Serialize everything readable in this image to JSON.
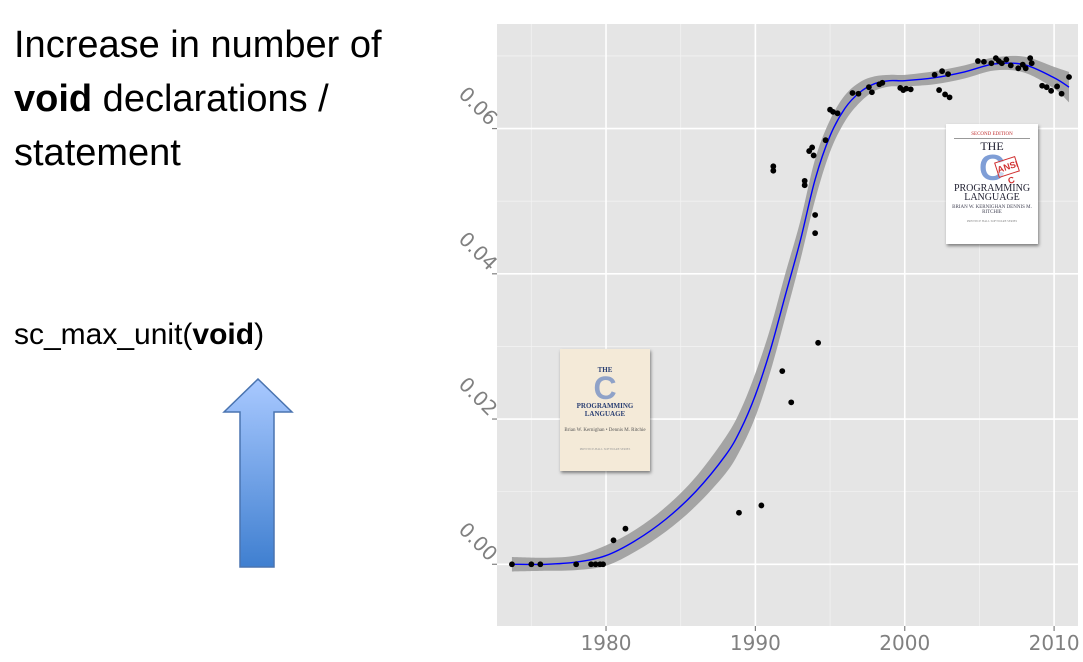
{
  "slide": {
    "title_pre": "Increase in number of",
    "title_bold": "void",
    "title_mid": " declarations /",
    "title_post": "statement",
    "code_pre": "sc_max_unit(",
    "code_bold": "void",
    "code_post": ")"
  },
  "colors": {
    "panel_background": "#e5e5e5",
    "gridline": "#ffffff",
    "points": "#000000",
    "smooth_line": "#0000ff",
    "confidence_band": "#999999",
    "arrow": "#5b8fd6"
  },
  "icons": [
    "up-arrow-icon"
  ],
  "books": {
    "first_edition": {
      "title_top": "THE",
      "title_big": "C",
      "title_bottom": "PROGRAMMING LANGUAGE",
      "authors": "Brian W. Kernighan • Dennis M. Ritchie",
      "footer": "PRENTICE-HALL SOFTWARE SERIES"
    },
    "second_edition": {
      "edition": "SECOND EDITION",
      "title_top": "THE",
      "title_big": "C",
      "stamp": "ANSI C",
      "title_bottom": "PROGRAMMING LANGUAGE",
      "authors": "BRIAN W. KERNIGHAN DENNIS M. RITCHIE",
      "footer": "PRENTICE HALL SOFTWARE SERIES"
    }
  },
  "chart_data": {
    "type": "scatter",
    "xlabel": "",
    "ylabel": "",
    "xlim": [
      1972.7,
      2011.6
    ],
    "ylim": [
      -0.0085,
      0.0744
    ],
    "xticks": [
      1980,
      1990,
      2000,
      2010
    ],
    "xtick_labels": [
      "1980",
      "1990",
      "2000",
      "2010"
    ],
    "yticks": [
      0.0,
      0.02,
      0.04,
      0.06
    ],
    "ytick_labels": [
      "0.00",
      "0.02",
      "0.04",
      "0.06"
    ],
    "ytick_rotation_deg": 45,
    "grid": true,
    "legend": "none",
    "points": [
      [
        1973.7,
        0.0
      ],
      [
        1975.0,
        0.0
      ],
      [
        1975.6,
        0.0
      ],
      [
        1978.0,
        0.0
      ],
      [
        1979.0,
        0.0
      ],
      [
        1979.3,
        0.0
      ],
      [
        1979.6,
        0.0
      ],
      [
        1979.8,
        0.0
      ],
      [
        1980.5,
        0.0033
      ],
      [
        1981.3,
        0.0049
      ],
      [
        1988.9,
        0.0071
      ],
      [
        1990.4,
        0.0081
      ],
      [
        1991.2,
        0.0548
      ],
      [
        1991.2,
        0.0542
      ],
      [
        1991.8,
        0.0266
      ],
      [
        1992.4,
        0.0223
      ],
      [
        1993.3,
        0.0528
      ],
      [
        1993.3,
        0.0522
      ],
      [
        1993.6,
        0.0569
      ],
      [
        1993.8,
        0.0574
      ],
      [
        1993.9,
        0.0563
      ],
      [
        1994.0,
        0.0481
      ],
      [
        1994.0,
        0.0456
      ],
      [
        1994.2,
        0.0305
      ],
      [
        1994.7,
        0.0584
      ],
      [
        1995.0,
        0.0626
      ],
      [
        1995.2,
        0.0623
      ],
      [
        1995.5,
        0.0621
      ],
      [
        1996.5,
        0.0649
      ],
      [
        1996.9,
        0.0648
      ],
      [
        1997.6,
        0.0657
      ],
      [
        1997.8,
        0.065
      ],
      [
        1998.3,
        0.0661
      ],
      [
        1998.5,
        0.0663
      ],
      [
        1999.7,
        0.0656
      ],
      [
        1999.9,
        0.0653
      ],
      [
        2000.1,
        0.0655
      ],
      [
        2000.4,
        0.0654
      ],
      [
        2002.0,
        0.0674
      ],
      [
        2002.3,
        0.0653
      ],
      [
        2002.5,
        0.0679
      ],
      [
        2002.7,
        0.0647
      ],
      [
        2002.9,
        0.0675
      ],
      [
        2003.0,
        0.0643
      ],
      [
        2004.9,
        0.0693
      ],
      [
        2005.3,
        0.0692
      ],
      [
        2005.8,
        0.069
      ],
      [
        2006.1,
        0.0697
      ],
      [
        2006.3,
        0.0693
      ],
      [
        2006.5,
        0.069
      ],
      [
        2006.8,
        0.0695
      ],
      [
        2007.1,
        0.0687
      ],
      [
        2007.6,
        0.0683
      ],
      [
        2007.9,
        0.0688
      ],
      [
        2008.1,
        0.0683
      ],
      [
        2008.4,
        0.0697
      ],
      [
        2008.5,
        0.069
      ],
      [
        2009.2,
        0.0659
      ],
      [
        2009.5,
        0.0657
      ],
      [
        2009.8,
        0.0652
      ],
      [
        2010.2,
        0.0658
      ],
      [
        2010.5,
        0.0648
      ],
      [
        2011.0,
        0.0671
      ]
    ],
    "smooth": {
      "x": [
        1973.7,
        1976,
        1978,
        1980,
        1982,
        1984,
        1986,
        1988,
        1989,
        1990,
        1991,
        1992,
        1993,
        1994,
        1995,
        1996,
        1997,
        1998,
        1999,
        2000,
        2002,
        2004,
        2006,
        2008,
        2010,
        2011.0
      ],
      "y": [
        0.0,
        0.0,
        0.0003,
        0.0012,
        0.0033,
        0.0062,
        0.01,
        0.015,
        0.0185,
        0.0233,
        0.0295,
        0.037,
        0.0445,
        0.053,
        0.059,
        0.0628,
        0.065,
        0.0662,
        0.0666,
        0.0666,
        0.067,
        0.0678,
        0.0689,
        0.0688,
        0.067,
        0.0657
      ],
      "lo": [
        -0.001,
        -0.0009,
        -0.0008,
        -0.0002,
        0.0018,
        0.0045,
        0.008,
        0.0125,
        0.0158,
        0.0203,
        0.0265,
        0.034,
        0.0418,
        0.0502,
        0.0568,
        0.061,
        0.0636,
        0.0652,
        0.0658,
        0.0658,
        0.0661,
        0.0669,
        0.068,
        0.0677,
        0.0655,
        0.0636
      ],
      "hi": [
        0.001,
        0.0009,
        0.0012,
        0.0026,
        0.0048,
        0.0079,
        0.012,
        0.0175,
        0.0212,
        0.0263,
        0.0325,
        0.04,
        0.0472,
        0.0558,
        0.0612,
        0.0646,
        0.0664,
        0.0672,
        0.0674,
        0.0674,
        0.0679,
        0.0687,
        0.0698,
        0.0699,
        0.0685,
        0.0678
      ]
    }
  }
}
